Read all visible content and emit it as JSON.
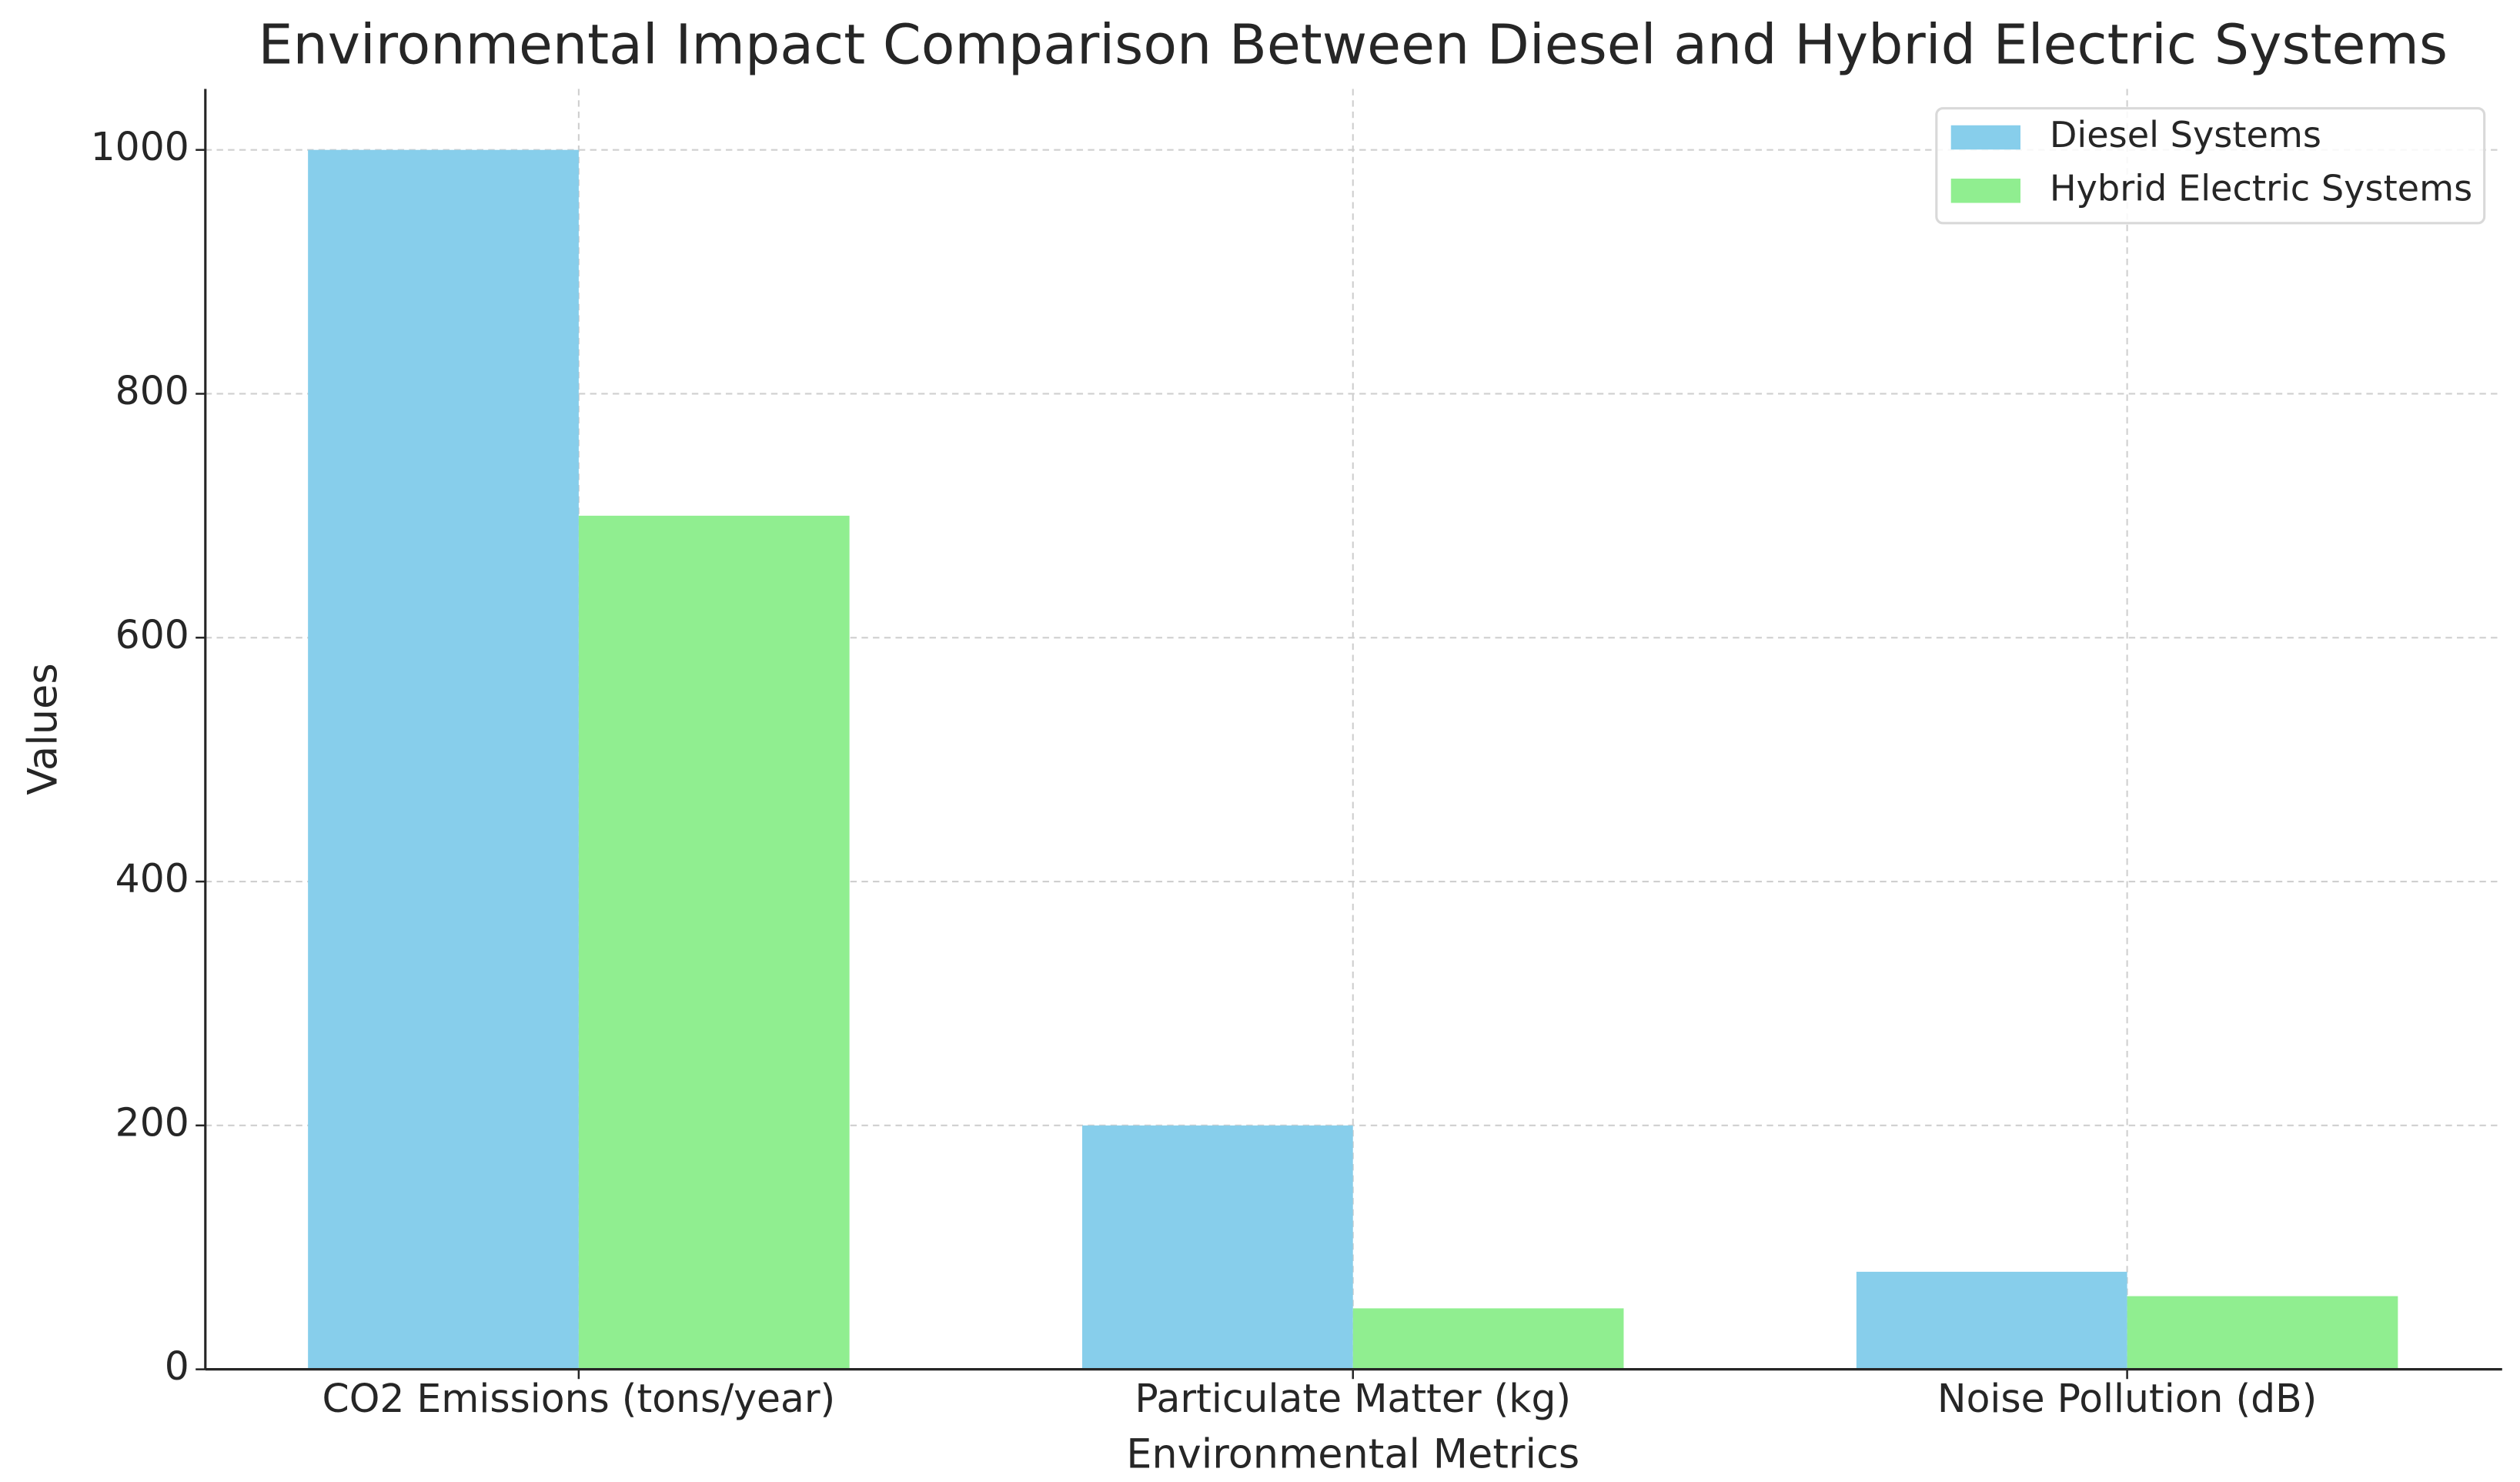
{
  "chart_data": {
    "type": "bar",
    "title": "Environmental Impact Comparison Between Diesel and Hybrid Electric Systems",
    "x_label": "Environmental Metrics",
    "y_label": "Values",
    "categories": [
      "CO2 Emissions (tons/year)",
      "Particulate Matter (kg)",
      "Noise Pollution (dB)"
    ],
    "series": [
      {
        "name": "Diesel Systems",
        "color": "#87ceeb",
        "values": [
          1000,
          200,
          80
        ]
      },
      {
        "name": "Hybrid Electric Systems",
        "color": "#90ee90",
        "values": [
          700,
          50,
          60
        ]
      }
    ],
    "ylim": [
      0,
      1050
    ],
    "yticks": [
      0,
      200,
      400,
      600,
      800,
      1000
    ],
    "grid": true,
    "legend": "upper right"
  }
}
